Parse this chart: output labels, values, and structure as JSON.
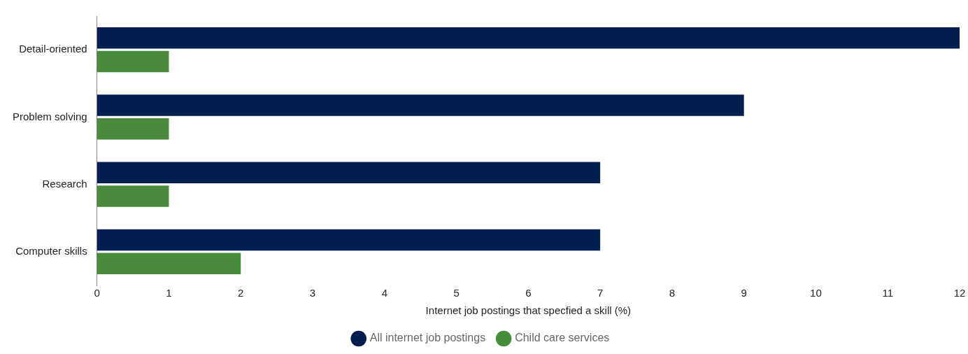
{
  "chart_data": {
    "type": "bar",
    "orientation": "horizontal",
    "categories": [
      "Detail-oriented",
      "Problem solving",
      "Research",
      "Computer skills"
    ],
    "series": [
      {
        "name": "All internet job postings",
        "color": "#041e52",
        "values": [
          12,
          9,
          7,
          7
        ]
      },
      {
        "name": "Child care services",
        "color": "#4a8c3c",
        "values": [
          1,
          1,
          1,
          2
        ]
      }
    ],
    "xlabel": "Internet job postings that specfied a skill (%)",
    "xlim": [
      0,
      12
    ],
    "xticks": [
      0,
      1,
      2,
      3,
      4,
      5,
      6,
      7,
      8,
      9,
      10,
      11,
      12
    ],
    "grid": false,
    "legend": "bottom"
  }
}
